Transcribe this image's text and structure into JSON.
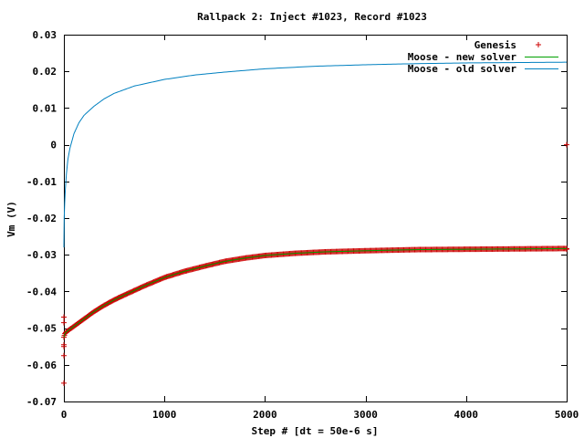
{
  "chart_data": {
    "type": "line",
    "title": "Rallpack 2: Inject #1023, Record #1023",
    "xlabel": "Step # [dt = 50e-6 s]",
    "ylabel": "Vm (V)",
    "xlim": [
      0,
      5000
    ],
    "ylim": [
      -0.07,
      0.03
    ],
    "xticks": [
      0,
      1000,
      2000,
      3000,
      4000,
      5000
    ],
    "xtick_labels": [
      "0",
      "1000",
      "2000",
      "3000",
      "4000",
      "5000"
    ],
    "yticks": [
      -0.07,
      -0.06,
      -0.05,
      -0.04,
      -0.03,
      -0.02,
      -0.01,
      0,
      0.01,
      0.02,
      0.03
    ],
    "ytick_labels": [
      "-0.07",
      "-0.06",
      "-0.05",
      "-0.04",
      "-0.03",
      "-0.02",
      "-0.01",
      "0",
      "0.01",
      "0.02",
      "0.03"
    ],
    "grid": false,
    "legend_position": "top-right",
    "series": [
      {
        "name": "Genesis",
        "style": "points-plus",
        "color": "#cc0000",
        "x": [
          0,
          10,
          25,
          50,
          100,
          200,
          300,
          400,
          500,
          600,
          800,
          1000,
          1200,
          1400,
          1600,
          1800,
          2000,
          2300,
          2600,
          3000,
          3500,
          4000,
          4500,
          5000
        ],
        "y": [
          -0.0525,
          -0.0515,
          -0.051,
          -0.0505,
          -0.0495,
          -0.0475,
          -0.0455,
          -0.0438,
          -0.0423,
          -0.041,
          -0.0385,
          -0.0362,
          -0.0345,
          -0.0331,
          -0.0318,
          -0.0309,
          -0.0302,
          -0.0296,
          -0.0292,
          -0.0289,
          -0.0286,
          -0.0285,
          -0.0284,
          -0.0283
        ],
        "outliers_x": [
          0,
          0,
          0,
          0,
          0,
          0,
          5000,
          5000
        ],
        "outliers_y": [
          -0.065,
          -0.0575,
          -0.055,
          -0.0485,
          -0.047,
          -0.0545,
          0,
          -0.0285
        ]
      },
      {
        "name": "Moose - new solver",
        "style": "line",
        "color": "#00a000",
        "x": [
          0,
          10,
          25,
          50,
          100,
          200,
          300,
          400,
          500,
          600,
          800,
          1000,
          1200,
          1400,
          1600,
          1800,
          2000,
          2300,
          2600,
          3000,
          3500,
          4000,
          4500,
          5000
        ],
        "y": [
          -0.0525,
          -0.0515,
          -0.051,
          -0.0505,
          -0.0495,
          -0.0475,
          -0.0455,
          -0.0438,
          -0.0423,
          -0.041,
          -0.0385,
          -0.0362,
          -0.0345,
          -0.0331,
          -0.0318,
          -0.0309,
          -0.0302,
          -0.0296,
          -0.0292,
          -0.0289,
          -0.0286,
          -0.0285,
          -0.0284,
          -0.0283
        ]
      },
      {
        "name": "Moose - old solver",
        "style": "line",
        "color": "#0080c0",
        "x": [
          0,
          3,
          8,
          15,
          25,
          40,
          60,
          100,
          150,
          200,
          300,
          400,
          500,
          700,
          1000,
          1300,
          1600,
          2000,
          2500,
          3000,
          3500,
          4000,
          4500,
          5000
        ],
        "y": [
          -0.028,
          -0.02,
          -0.016,
          -0.012,
          -0.008,
          -0.004,
          -0.001,
          0.003,
          0.006,
          0.008,
          0.0105,
          0.0125,
          0.014,
          0.016,
          0.0178,
          0.019,
          0.0198,
          0.0207,
          0.0214,
          0.0218,
          0.0221,
          0.0223,
          0.0224,
          0.0225
        ]
      }
    ]
  }
}
